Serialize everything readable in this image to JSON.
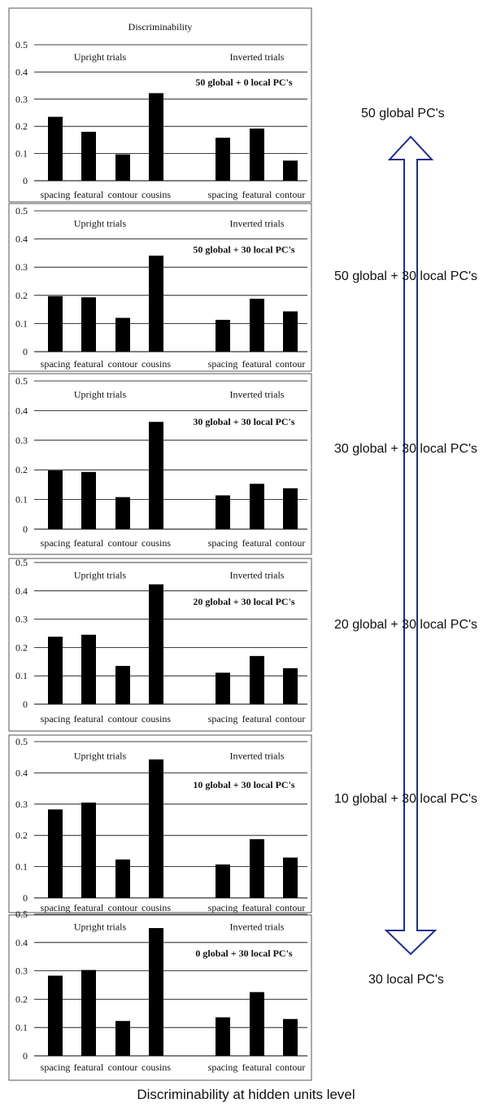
{
  "figure": {
    "caption": "Discriminability at hidden units level",
    "colors": {
      "bars": "#000000",
      "gridlines": "#000000",
      "frame": "#555555",
      "arrow": "#1f2d8f"
    },
    "arrow": {
      "top_label": "50 global PC's",
      "bottom_label": "30 local PC's",
      "labels": [
        "50 global + 30 local PC's",
        "30 global + 30 local PC's",
        "20 global + 30 local PC's",
        "10 global + 30 local PC's"
      ]
    }
  },
  "chart_data": [
    {
      "type": "bar",
      "title": "Discriminability",
      "annotation": "50 global + 0 local PC's",
      "groups": [
        "Upright trials",
        "Inverted trials"
      ],
      "categories": [
        "spacing",
        "featural",
        "contour",
        "cousins",
        "spacing",
        "featural",
        "contour"
      ],
      "values": [
        0.235,
        0.18,
        0.097,
        0.322,
        0.158,
        0.192,
        0.074
      ],
      "ylim": [
        0,
        0.5
      ],
      "yticks": [
        "0",
        "0.1",
        "0.2",
        "0.3",
        "0.4",
        "0.5"
      ],
      "grid": true
    },
    {
      "type": "bar",
      "title": "",
      "annotation": "50 global + 30 local PC's",
      "groups": [
        "Upright trials",
        "Inverted trials"
      ],
      "categories": [
        "spacing",
        "featural",
        "contour",
        "cousins",
        "spacing",
        "featural",
        "contour"
      ],
      "values": [
        0.197,
        0.193,
        0.12,
        0.341,
        0.113,
        0.188,
        0.143
      ],
      "ylim": [
        0,
        0.5
      ],
      "yticks": [
        "0",
        "0.1",
        "0.2",
        "0.3",
        "0.4",
        "0.5"
      ],
      "grid": true
    },
    {
      "type": "bar",
      "title": "",
      "annotation": "30 global + 30 local PC's",
      "groups": [
        "Upright trials",
        "Inverted trials"
      ],
      "categories": [
        "spacing",
        "featural",
        "contour",
        "cousins",
        "spacing",
        "featural",
        "contour"
      ],
      "values": [
        0.198,
        0.193,
        0.108,
        0.362,
        0.114,
        0.153,
        0.138
      ],
      "ylim": [
        0,
        0.5
      ],
      "yticks": [
        "0",
        "0.1",
        "0.2",
        "0.3",
        "0.4",
        "0.5"
      ],
      "grid": true
    },
    {
      "type": "bar",
      "title": "",
      "annotation": "20 global + 30 local PC's",
      "groups": [
        "Upright trials",
        "Inverted trials"
      ],
      "categories": [
        "spacing",
        "featural",
        "contour",
        "cousins",
        "spacing",
        "featural",
        "contour"
      ],
      "values": [
        0.238,
        0.245,
        0.135,
        0.423,
        0.111,
        0.17,
        0.127
      ],
      "ylim": [
        0,
        0.5
      ],
      "yticks": [
        "0",
        "0.1",
        "0.2",
        "0.3",
        "0.4",
        "0.5"
      ],
      "grid": true
    },
    {
      "type": "bar",
      "title": "",
      "annotation": "10 global + 30 local PC's",
      "groups": [
        "Upright trials",
        "Inverted trials"
      ],
      "categories": [
        "spacing",
        "featural",
        "contour",
        "cousins",
        "spacing",
        "featural",
        "contour"
      ],
      "values": [
        0.283,
        0.305,
        0.123,
        0.443,
        0.107,
        0.188,
        0.129
      ],
      "ylim": [
        0,
        0.5
      ],
      "yticks": [
        "0",
        "0.1",
        "0.2",
        "0.3",
        "0.4",
        "0.5"
      ],
      "grid": true
    },
    {
      "type": "bar",
      "title": "",
      "annotation": "0 global + 30 local PC's",
      "groups": [
        "Upright trials",
        "Inverted trials"
      ],
      "categories": [
        "spacing",
        "featural",
        "contour",
        "cousins",
        "spacing",
        "featural",
        "contour"
      ],
      "values": [
        0.283,
        0.303,
        0.123,
        0.451,
        0.136,
        0.225,
        0.13
      ],
      "ylim": [
        0,
        0.5
      ],
      "yticks": [
        "0",
        "0.1",
        "0.2",
        "0.3",
        "0.4",
        "0.5"
      ],
      "grid": true
    }
  ]
}
